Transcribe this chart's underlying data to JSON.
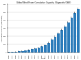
{
  "title": "Global Wind Power Cumulative Capacity (Gigawatts/GWE)",
  "xlabel": "Year",
  "ylabel": "Cumulative Capacity (Gigawatts)",
  "years": [
    1996,
    1997,
    1998,
    1999,
    2000,
    2001,
    2002,
    2003,
    2004,
    2005,
    2006,
    2007,
    2008,
    2009,
    2010,
    2011,
    2012,
    2013,
    2014,
    2015,
    2016,
    2017
  ],
  "values": [
    6.1,
    7.6,
    10.2,
    13.6,
    17.4,
    23.9,
    31.1,
    39.4,
    47.6,
    59.1,
    74.1,
    93.9,
    120.8,
    159.2,
    198.0,
    238.4,
    282.8,
    318.6,
    369.9,
    432.9,
    487.0,
    539.6
  ],
  "bar_color": "#2b7bba",
  "background_color": "#ffffff",
  "ylim": [
    0,
    600
  ],
  "yticks": [
    0,
    100,
    200,
    300,
    400,
    500,
    600
  ],
  "ytick_labels": [
    "0",
    "100",
    "200",
    "300",
    "400",
    "500",
    "600"
  ],
  "title_fontsize": 2.0,
  "axis_label_fontsize": 1.7,
  "tick_fontsize": 1.6
}
